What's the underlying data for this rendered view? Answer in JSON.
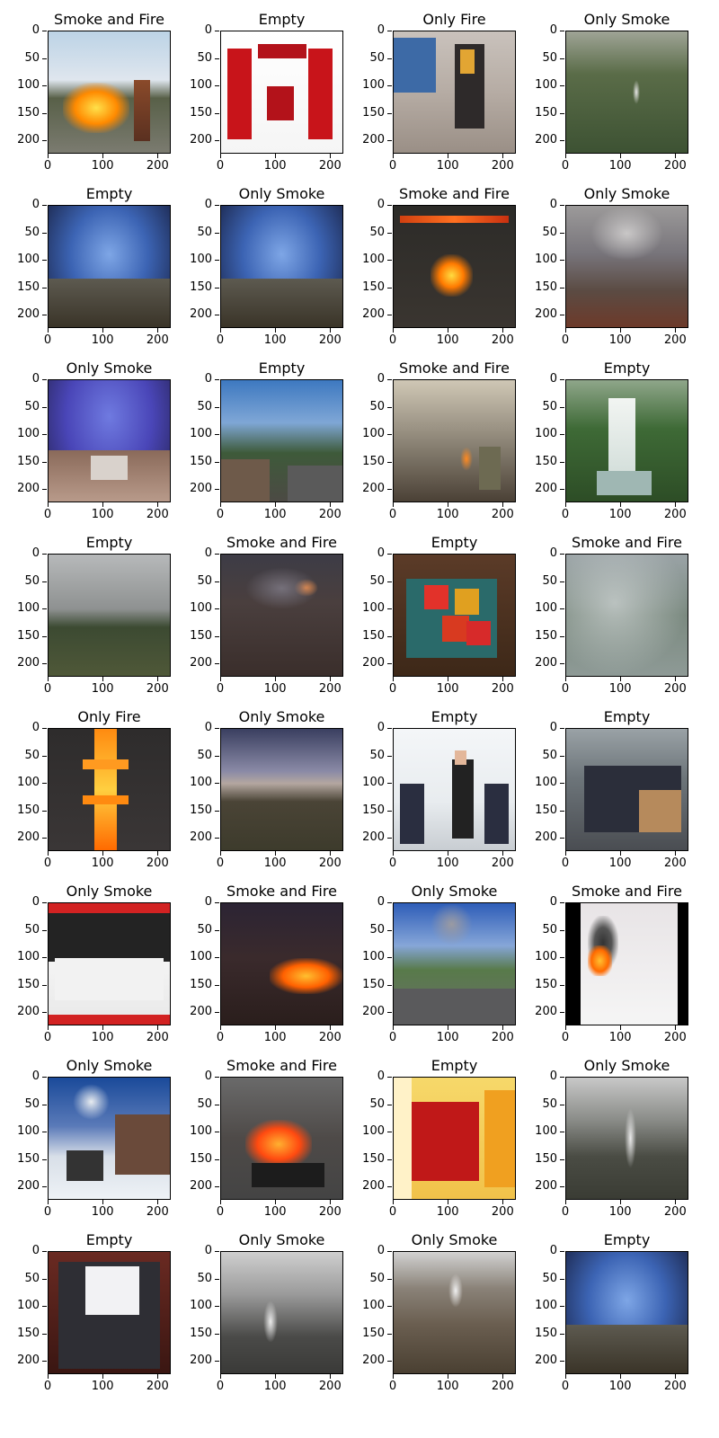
{
  "chart_data": {
    "type": "image-grid",
    "rows": 8,
    "cols": 4,
    "x_ticks": [
      "0",
      "100",
      "200"
    ],
    "y_ticks": [
      "0",
      "50",
      "100",
      "150",
      "200"
    ],
    "xlim": [
      0,
      224
    ],
    "ylim": [
      224,
      0
    ],
    "panels": [
      {
        "title": "Smoke and Fire",
        "scene": "fire"
      },
      {
        "title": "Empty",
        "scene": "red-poster"
      },
      {
        "title": "Only Fire",
        "scene": "firefighter"
      },
      {
        "title": "Only Smoke",
        "scene": "forest-smoke"
      },
      {
        "title": "Empty",
        "scene": "sky-landscape"
      },
      {
        "title": "Only Smoke",
        "scene": "sky-landscape"
      },
      {
        "title": "Smoke and Fire",
        "scene": "night-fire"
      },
      {
        "title": "Only Smoke",
        "scene": "hill-smoke"
      },
      {
        "title": "Only Smoke",
        "scene": "purple-sky"
      },
      {
        "title": "Empty",
        "scene": "hilltop"
      },
      {
        "title": "Smoke and Fire",
        "scene": "smoky-street"
      },
      {
        "title": "Empty",
        "scene": "waterfall"
      },
      {
        "title": "Empty",
        "scene": "cloudy-valley"
      },
      {
        "title": "Smoke and Fire",
        "scene": "dark-slope"
      },
      {
        "title": "Empty",
        "scene": "vegetables"
      },
      {
        "title": "Smoke and Fire",
        "scene": "aerial-smoke"
      },
      {
        "title": "Only Fire",
        "scene": "burning-cross"
      },
      {
        "title": "Only Smoke",
        "scene": "dusk-hills"
      },
      {
        "title": "Empty",
        "scene": "presentation"
      },
      {
        "title": "Empty",
        "scene": "classroom"
      },
      {
        "title": "Only Smoke",
        "scene": "truck-poster"
      },
      {
        "title": "Smoke and Fire",
        "scene": "night-fire-line"
      },
      {
        "title": "Only Smoke",
        "scene": "town-smoke"
      },
      {
        "title": "Smoke and Fire",
        "scene": "extinguisher"
      },
      {
        "title": "Only Smoke",
        "scene": "snow-chimney"
      },
      {
        "title": "Smoke and Fire",
        "scene": "fire-pan"
      },
      {
        "title": "Empty",
        "scene": "yellow-poster"
      },
      {
        "title": "Only Smoke",
        "scene": "grey-mountain"
      },
      {
        "title": "Empty",
        "scene": "bag"
      },
      {
        "title": "Only Smoke",
        "scene": "misty-mountain"
      },
      {
        "title": "Only Smoke",
        "scene": "rocky-slope"
      },
      {
        "title": "Empty",
        "scene": "sky-landscape"
      }
    ]
  }
}
